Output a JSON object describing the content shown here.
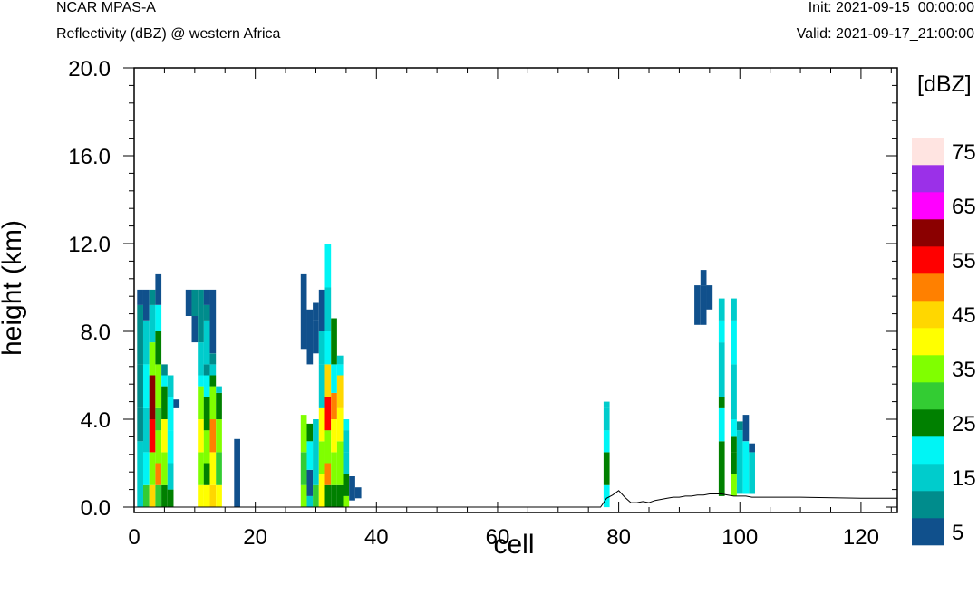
{
  "header": {
    "title": "NCAR MPAS-A",
    "subtitle": "Reflectivity (dBZ) @ western Africa",
    "init": "Init: 2021-09-15_00:00:00",
    "valid": "Valid: 2021-09-17_21:00:00"
  },
  "chart_data": {
    "type": "heatmap",
    "title": "",
    "xlabel": "cell",
    "ylabel": "height (km)",
    "xlim": [
      0,
      126
    ],
    "ylim": [
      0,
      20
    ],
    "x_ticks": [
      "0",
      "20",
      "40",
      "60",
      "80",
      "100",
      "120"
    ],
    "y_ticks": [
      "0.0",
      "4.0",
      "8.0",
      "12.0",
      "16.0",
      "20.0"
    ],
    "grid": false,
    "legend": "right",
    "colorbar": {
      "units": "[dBZ]",
      "labels": [
        "5",
        "15",
        "25",
        "35",
        "45",
        "55",
        "65",
        "75"
      ],
      "levels": [
        0,
        5,
        10,
        15,
        20,
        25,
        30,
        35,
        40,
        45,
        50,
        55,
        60,
        65,
        70,
        75,
        80
      ],
      "colors": [
        "#10508c",
        "#008c8c",
        "#00cccc",
        "#00f5f5",
        "#008000",
        "#33cc33",
        "#80ff00",
        "#ffff00",
        "#ffd700",
        "#ff8000",
        "#ff0000",
        "#8b0000",
        "#ff00ff",
        "#9b30e8",
        "#ffe4e1"
      ]
    },
    "column_profiles": [
      {
        "x": 1,
        "segments": [
          [
            0,
            1.5,
            12
          ],
          [
            1.5,
            3,
            10
          ],
          [
            3,
            4.5,
            8
          ],
          [
            4.5,
            6.5,
            7
          ],
          [
            6.5,
            8,
            6
          ],
          [
            8,
            9.2,
            5
          ],
          [
            9.2,
            9.9,
            1
          ]
        ]
      },
      {
        "x": 2,
        "segments": [
          [
            0,
            1,
            25
          ],
          [
            1,
            2.5,
            18
          ],
          [
            2.5,
            4.5,
            12
          ],
          [
            4.5,
            6.5,
            15
          ],
          [
            6.5,
            8.5,
            10
          ],
          [
            8.5,
            9.9,
            1
          ]
        ]
      },
      {
        "x": 3,
        "segments": [
          [
            0,
            1,
            40
          ],
          [
            1,
            2.5,
            30
          ],
          [
            2.5,
            4,
            50
          ],
          [
            4,
            6,
            55
          ],
          [
            6,
            7.5,
            32
          ],
          [
            7.5,
            9.2,
            10
          ],
          [
            9.2,
            9.9,
            6
          ]
        ]
      },
      {
        "x": 4,
        "segments": [
          [
            0,
            1,
            28
          ],
          [
            1,
            2,
            45
          ],
          [
            2,
            3.5,
            33
          ],
          [
            3.5,
            4.5,
            25
          ],
          [
            4.5,
            6.5,
            30
          ],
          [
            6.5,
            8,
            22
          ],
          [
            8,
            9.2,
            15
          ],
          [
            9.2,
            10.6,
            1
          ]
        ]
      },
      {
        "x": 5,
        "segments": [
          [
            0,
            1,
            22
          ],
          [
            1,
            2.5,
            30
          ],
          [
            2.5,
            4,
            35
          ],
          [
            4,
            5.5,
            20
          ],
          [
            5.5,
            6,
            15
          ],
          [
            6,
            6.5,
            8
          ]
        ]
      },
      {
        "x": 6,
        "segments": [
          [
            0,
            0.8,
            23
          ],
          [
            0.8,
            2,
            12
          ],
          [
            2,
            3.5,
            18
          ],
          [
            3.5,
            5,
            15
          ],
          [
            5,
            6,
            10
          ]
        ]
      },
      {
        "x": 7,
        "segments": [
          [
            4.5,
            4.9,
            1
          ]
        ]
      },
      {
        "x": 9,
        "segments": [
          [
            8.7,
            9.9,
            1
          ]
        ]
      },
      {
        "x": 10,
        "segments": [
          [
            7.5,
            8.7,
            1
          ],
          [
            8.7,
            9.9,
            6
          ]
        ]
      },
      {
        "x": 11,
        "segments": [
          [
            0,
            1,
            37
          ],
          [
            1,
            2.5,
            33
          ],
          [
            2.5,
            4,
            35
          ],
          [
            4,
            5.5,
            33
          ],
          [
            5.5,
            6,
            17
          ],
          [
            6,
            7.5,
            14
          ],
          [
            7.5,
            9.9,
            6
          ]
        ]
      },
      {
        "x": 12,
        "segments": [
          [
            0,
            1,
            38
          ],
          [
            1,
            2,
            22
          ],
          [
            2,
            3.5,
            30
          ],
          [
            3.5,
            5,
            23
          ],
          [
            5,
            6,
            15
          ],
          [
            6,
            6.5,
            8
          ],
          [
            6.5,
            8.5,
            12
          ],
          [
            8.5,
            9.2,
            7
          ],
          [
            9.2,
            9.9,
            1
          ]
        ]
      },
      {
        "x": 13,
        "segments": [
          [
            0,
            1,
            43
          ],
          [
            1,
            2.5,
            37
          ],
          [
            2.5,
            4,
            45
          ],
          [
            4,
            5.5,
            30
          ],
          [
            5.5,
            6,
            22
          ],
          [
            6,
            6.5,
            10
          ],
          [
            6.5,
            7,
            6
          ],
          [
            7,
            9.9,
            1
          ]
        ]
      },
      {
        "x": 14,
        "segments": [
          [
            0,
            1,
            36
          ],
          [
            1,
            2.5,
            25
          ],
          [
            2.5,
            4,
            34
          ],
          [
            4,
            5.2,
            22
          ],
          [
            5.2,
            5.5,
            14
          ]
        ]
      },
      {
        "x": 17,
        "segments": [
          [
            0,
            3.1,
            1
          ]
        ]
      },
      {
        "x": 28,
        "segments": [
          [
            0,
            1,
            34
          ],
          [
            1,
            2.5,
            26
          ],
          [
            2.5,
            4.2,
            30
          ],
          [
            7.2,
            10.6,
            1
          ]
        ]
      },
      {
        "x": 29,
        "segments": [
          [
            0,
            0.5,
            10
          ],
          [
            0.5,
            1.7,
            1
          ],
          [
            1.7,
            3,
            15
          ],
          [
            3,
            3.8,
            20
          ],
          [
            6.5,
            9,
            1
          ]
        ]
      },
      {
        "x": 30,
        "segments": [
          [
            0,
            1,
            25
          ],
          [
            1,
            2,
            14
          ],
          [
            2,
            3.7,
            10
          ],
          [
            3.7,
            4,
            12
          ],
          [
            7,
            8.5,
            1
          ],
          [
            8.5,
            9.3,
            1
          ]
        ]
      },
      {
        "x": 31,
        "segments": [
          [
            0,
            1.5,
            38
          ],
          [
            1.5,
            3,
            30
          ],
          [
            3,
            4.5,
            37
          ],
          [
            4.5,
            6.5,
            12
          ],
          [
            6.5,
            8,
            10
          ],
          [
            8,
            9.9,
            1
          ]
        ]
      },
      {
        "x": 32,
        "segments": [
          [
            0,
            1,
            22
          ],
          [
            1,
            2,
            45
          ],
          [
            2,
            3.5,
            30
          ],
          [
            3.5,
            5,
            50
          ],
          [
            5,
            6.5,
            40
          ],
          [
            6.5,
            8,
            15
          ],
          [
            8,
            10,
            12
          ],
          [
            10,
            12,
            15
          ]
        ]
      },
      {
        "x": 33,
        "segments": [
          [
            0,
            1,
            20
          ],
          [
            1,
            2.5,
            30
          ],
          [
            2.5,
            4,
            35
          ],
          [
            4,
            5.2,
            45
          ],
          [
            5.2,
            6.5,
            15
          ],
          [
            6.5,
            8.6,
            22
          ]
        ]
      },
      {
        "x": 34,
        "segments": [
          [
            0,
            1,
            20
          ],
          [
            1,
            3,
            30
          ],
          [
            3,
            4.5,
            36
          ],
          [
            4.5,
            6,
            40
          ],
          [
            6,
            6.5,
            15
          ],
          [
            6.5,
            6.9,
            10
          ]
        ]
      },
      {
        "x": 35,
        "segments": [
          [
            0,
            0.5,
            32
          ],
          [
            0.5,
            1.5,
            20
          ],
          [
            1.5,
            2.5,
            12
          ],
          [
            2.5,
            3.5,
            10
          ],
          [
            3.5,
            4,
            15
          ]
        ]
      },
      {
        "x": 36,
        "segments": [
          [
            0.3,
            1.4,
            1
          ]
        ]
      },
      {
        "x": 37,
        "segments": [
          [
            0.4,
            0.9,
            1
          ]
        ]
      },
      {
        "x": 78,
        "segments": [
          [
            0,
            1,
            15
          ],
          [
            1,
            2.5,
            23
          ],
          [
            2.5,
            3.5,
            17
          ],
          [
            3.5,
            4.5,
            14
          ],
          [
            4.5,
            4.8,
            10
          ]
        ]
      },
      {
        "x": 93,
        "segments": [
          [
            8.3,
            10.1,
            1
          ]
        ]
      },
      {
        "x": 94,
        "segments": [
          [
            8.3,
            10.1,
            1
          ],
          [
            10.1,
            10.8,
            1
          ]
        ]
      },
      {
        "x": 95,
        "segments": [
          [
            9,
            10.1,
            1
          ]
        ]
      },
      {
        "x": 97,
        "segments": [
          [
            0.5,
            2,
            23
          ],
          [
            2,
            3,
            22
          ],
          [
            3,
            4.5,
            17
          ],
          [
            4.5,
            5,
            22
          ],
          [
            5,
            7.5,
            14
          ],
          [
            7.5,
            8.5,
            15
          ],
          [
            8.5,
            9.5,
            10
          ]
        ]
      },
      {
        "x": 99,
        "segments": [
          [
            0.5,
            1.5,
            30
          ],
          [
            1.5,
            2.5,
            23
          ],
          [
            2.5,
            3.2,
            22
          ],
          [
            3.2,
            4,
            15
          ],
          [
            4,
            6.5,
            14
          ],
          [
            6.5,
            8.5,
            15
          ],
          [
            8.5,
            9.5,
            10
          ]
        ]
      },
      {
        "x": 100,
        "segments": [
          [
            0.6,
            3.5,
            12
          ],
          [
            3.5,
            3.9,
            6
          ]
        ]
      },
      {
        "x": 101,
        "segments": [
          [
            0.6,
            3,
            15
          ],
          [
            3,
            4.2,
            1
          ]
        ]
      },
      {
        "x": 102,
        "segments": [
          [
            0.6,
            2.5,
            14
          ],
          [
            2.5,
            2.9,
            1
          ]
        ]
      }
    ],
    "terrain": {
      "x": [
        0,
        77,
        78,
        79,
        80,
        81,
        82,
        83,
        84,
        85,
        86,
        87,
        88,
        89,
        90,
        91,
        92,
        93,
        94,
        95,
        96,
        97,
        98,
        99,
        100,
        101,
        102,
        103,
        110,
        120,
        126
      ],
      "y": [
        0,
        0,
        0.4,
        0.55,
        0.75,
        0.45,
        0.2,
        0.2,
        0.25,
        0.2,
        0.3,
        0.35,
        0.4,
        0.45,
        0.45,
        0.5,
        0.5,
        0.55,
        0.55,
        0.6,
        0.6,
        0.6,
        0.55,
        0.5,
        0.5,
        0.5,
        0.45,
        0.45,
        0.45,
        0.4,
        0.4
      ]
    }
  }
}
